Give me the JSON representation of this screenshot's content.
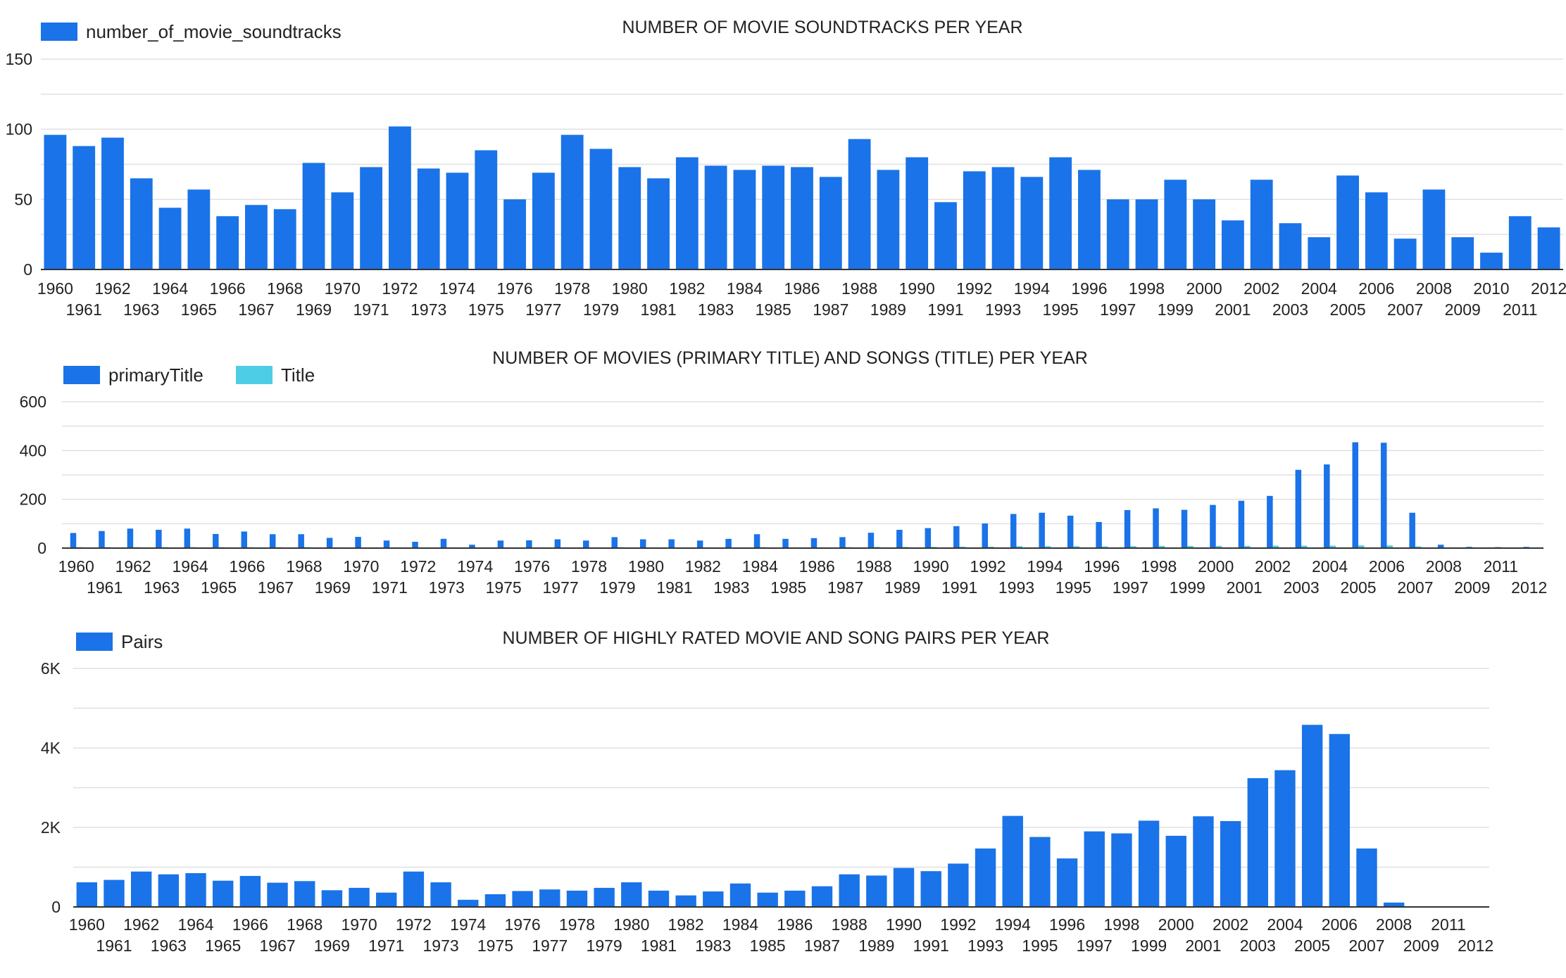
{
  "chart_data": [
    {
      "type": "bar",
      "title": "NUMBER OF MOVIE SOUNDTRACKS PER YEAR",
      "xlabel": "",
      "ylabel": "",
      "ylim": [
        0,
        150
      ],
      "yticks": [
        "0",
        "50",
        "100",
        "150"
      ],
      "ytick_values": [
        0,
        50,
        100,
        150
      ],
      "grid": true,
      "legend_position": "top-left",
      "categories": [
        "1960",
        "1961",
        "1962",
        "1963",
        "1964",
        "1965",
        "1966",
        "1967",
        "1968",
        "1969",
        "1970",
        "1971",
        "1972",
        "1973",
        "1974",
        "1975",
        "1976",
        "1977",
        "1978",
        "1979",
        "1980",
        "1981",
        "1982",
        "1983",
        "1984",
        "1985",
        "1986",
        "1987",
        "1988",
        "1989",
        "1990",
        "1991",
        "1992",
        "1993",
        "1994",
        "1995",
        "1996",
        "1997",
        "1998",
        "1999",
        "2000",
        "2001",
        "2002",
        "2003",
        "2004",
        "2005",
        "2006",
        "2007",
        "2008",
        "2009",
        "2010",
        "2011",
        "2012"
      ],
      "series": [
        {
          "name": "number_of_movie_soundtracks",
          "color": "#1a73e8",
          "values": [
            96,
            88,
            94,
            65,
            44,
            57,
            38,
            46,
            43,
            76,
            55,
            73,
            102,
            72,
            69,
            85,
            50,
            69,
            96,
            86,
            73,
            65,
            80,
            74,
            71,
            74,
            73,
            66,
            93,
            71,
            80,
            48,
            70,
            73,
            66,
            80,
            71,
            50,
            50,
            64,
            50,
            35,
            64,
            33,
            23,
            67,
            55,
            22,
            57,
            23,
            12,
            38,
            30
          ]
        }
      ]
    },
    {
      "type": "bar",
      "title": "NUMBER OF MOVIES (PRIMARY TITLE) AND SONGS (TITLE) PER YEAR",
      "xlabel": "",
      "ylabel": "",
      "ylim": [
        0,
        600
      ],
      "yticks": [
        "0",
        "200",
        "400",
        "600"
      ],
      "ytick_values": [
        0,
        200,
        400,
        600
      ],
      "grid": true,
      "legend_position": "top-left",
      "categories": [
        "1960",
        "1961",
        "1962",
        "1963",
        "1964",
        "1965",
        "1966",
        "1967",
        "1968",
        "1969",
        "1970",
        "1971",
        "1972",
        "1973",
        "1974",
        "1975",
        "1976",
        "1977",
        "1978",
        "1979",
        "1980",
        "1981",
        "1982",
        "1983",
        "1984",
        "1985",
        "1986",
        "1987",
        "1988",
        "1989",
        "1990",
        "1991",
        "1992",
        "1993",
        "1994",
        "1995",
        "1996",
        "1997",
        "1998",
        "1999",
        "2000",
        "2001",
        "2002",
        "2003",
        "2004",
        "2005",
        "2006",
        "2007",
        "2008",
        "2009",
        "2011",
        "2012"
      ],
      "series": [
        {
          "name": "primaryTitle",
          "color": "#1a73e8",
          "values": [
            62,
            70,
            80,
            75,
            80,
            58,
            68,
            57,
            57,
            42,
            46,
            31,
            26,
            38,
            14,
            31,
            32,
            36,
            31,
            45,
            36,
            36,
            31,
            38,
            57,
            38,
            41,
            45,
            63,
            75,
            82,
            90,
            101,
            140,
            145,
            133,
            107,
            156,
            163,
            157,
            177,
            194,
            214,
            321,
            343,
            434,
            432,
            145,
            14,
            5,
            4,
            5
          ]
        },
        {
          "name": "Title",
          "color": "#4ecde6",
          "values": [
            4,
            4,
            4,
            4,
            4,
            4,
            4,
            4,
            4,
            3,
            3,
            3,
            3,
            3,
            2,
            3,
            3,
            3,
            3,
            4,
            3,
            3,
            3,
            3,
            4,
            3,
            3,
            4,
            5,
            5,
            5,
            6,
            6,
            8,
            8,
            8,
            7,
            8,
            9,
            9,
            9,
            9,
            10,
            10,
            10,
            11,
            11,
            7,
            3,
            2,
            2,
            2
          ]
        }
      ]
    },
    {
      "type": "bar",
      "title": "NUMBER OF HIGHLY RATED MOVIE AND SONG PAIRS PER YEAR",
      "xlabel": "",
      "ylabel": "",
      "ylim": [
        0,
        6000
      ],
      "yticks": [
        "0",
        "2K",
        "4K",
        "6K"
      ],
      "ytick_values": [
        0,
        2000,
        4000,
        6000
      ],
      "grid": true,
      "legend_position": "top-left",
      "categories": [
        "1960",
        "1961",
        "1962",
        "1963",
        "1964",
        "1965",
        "1966",
        "1967",
        "1968",
        "1969",
        "1970",
        "1971",
        "1972",
        "1973",
        "1974",
        "1975",
        "1976",
        "1977",
        "1978",
        "1979",
        "1980",
        "1981",
        "1982",
        "1983",
        "1984",
        "1985",
        "1986",
        "1987",
        "1988",
        "1989",
        "1990",
        "1991",
        "1992",
        "1993",
        "1994",
        "1995",
        "1996",
        "1997",
        "1998",
        "1999",
        "2000",
        "2001",
        "2002",
        "2003",
        "2004",
        "2005",
        "2006",
        "2007",
        "2008",
        "2009",
        "2011",
        "2012"
      ],
      "series": [
        {
          "name": "Pairs",
          "color": "#1a73e8",
          "values": [
            620,
            680,
            890,
            820,
            850,
            660,
            780,
            610,
            650,
            420,
            480,
            360,
            890,
            620,
            180,
            320,
            400,
            440,
            410,
            480,
            620,
            410,
            290,
            390,
            590,
            360,
            410,
            520,
            820,
            790,
            980,
            900,
            1090,
            1470,
            2290,
            1760,
            1220,
            1900,
            1850,
            2170,
            1790,
            2280,
            2160,
            3240,
            3440,
            4580,
            4350,
            1470,
            110,
            0,
            0,
            0
          ]
        }
      ]
    }
  ]
}
